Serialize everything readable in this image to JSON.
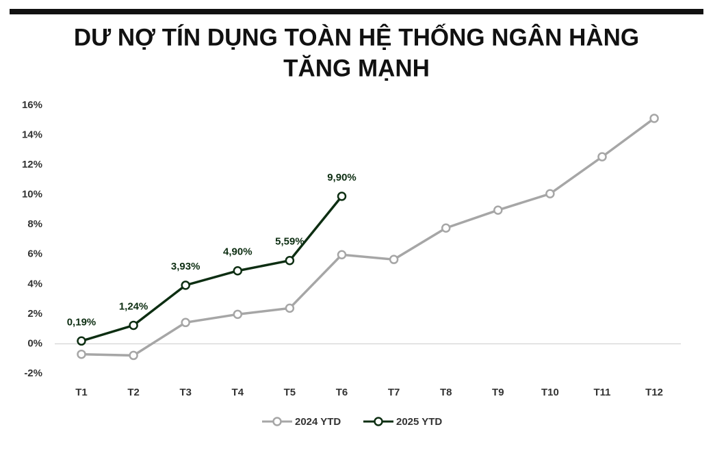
{
  "chart_data": {
    "type": "line",
    "title": "DƯ NỢ TÍN DỤNG TOÀN HỆ THỐNG NGÂN HÀNG",
    "subtitle": "TĂNG MẠNH",
    "categories": [
      "T1",
      "T2",
      "T3",
      "T4",
      "T5",
      "T6",
      "T7",
      "T8",
      "T9",
      "T10",
      "T11",
      "T12"
    ],
    "series": [
      {
        "name": "2024 YTD",
        "color": "#a6a6a6",
        "values": [
          -0.7,
          -0.78,
          1.43,
          1.98,
          2.39,
          5.98,
          5.66,
          7.77,
          8.97,
          10.07,
          12.55,
          15.13
        ]
      },
      {
        "name": "2025 YTD",
        "color": "#0d2e12",
        "values": [
          0.19,
          1.24,
          3.93,
          4.9,
          5.59,
          9.9,
          null,
          null,
          null,
          null,
          null,
          null
        ],
        "value_labels": [
          "0,19%",
          "1,24%",
          "3,93%",
          "4,90%",
          "5,59%",
          "9,90%",
          null,
          null,
          null,
          null,
          null,
          null
        ]
      }
    ],
    "ylim": [
      -2,
      16
    ],
    "yticks": [
      {
        "value": -2,
        "label": "-2%"
      },
      {
        "value": 0,
        "label": "0%"
      },
      {
        "value": 2,
        "label": "2%"
      },
      {
        "value": 4,
        "label": "4%"
      },
      {
        "value": 6,
        "label": "6%"
      },
      {
        "value": 8,
        "label": "8%"
      },
      {
        "value": 10,
        "label": "10%"
      },
      {
        "value": 12,
        "label": "12%"
      },
      {
        "value": 14,
        "label": "14%"
      },
      {
        "value": 16,
        "label": "16%"
      }
    ],
    "legend": "bottom"
  }
}
